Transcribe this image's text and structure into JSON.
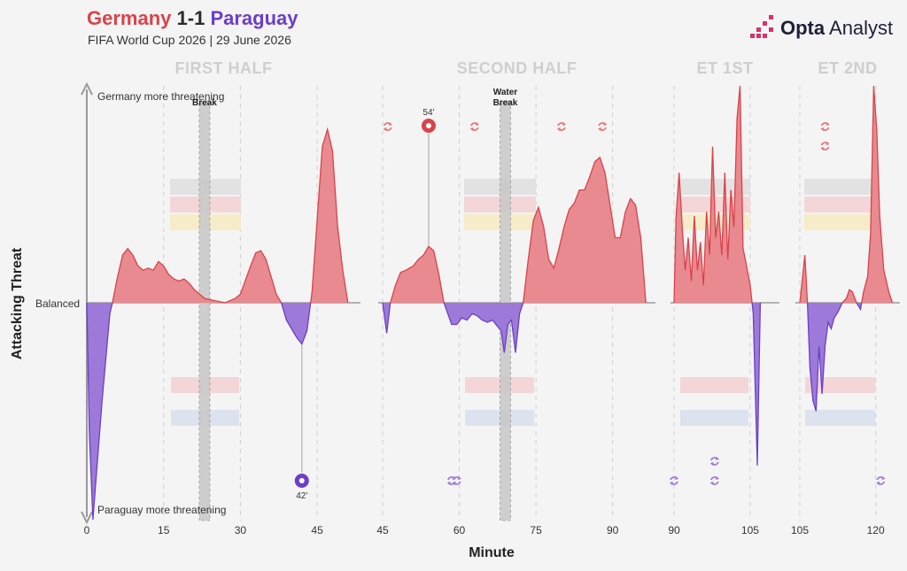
{
  "header": {
    "team_home": "Germany",
    "score": "1-1",
    "team_away": "Paraguay",
    "subtitle": "FIFA World Cup 2026 | 29 June 2026"
  },
  "brand": {
    "name_bold": "Opta",
    "name_rest": " Analyst"
  },
  "colors": {
    "home": "#d9434b",
    "home_fill": "#e88a8f",
    "away": "#6b3fc8",
    "away_fill": "#9d7ad9",
    "grid": "#cfcfcf",
    "break_band": "#c8c8c8"
  },
  "chart_data": {
    "type": "area",
    "title": "Germany 1-1 Paraguay",
    "xlabel": "Minute",
    "ylabel": "Attacking Threat",
    "y_annotations": {
      "top": "Germany more threatening",
      "middle": "Balanced",
      "bottom": "Paraguay more threatening"
    },
    "ylim": [
      -1,
      1
    ],
    "x_ticks": [
      {
        "label": "0",
        "minute": 0
      },
      {
        "label": "15",
        "minute": 15
      },
      {
        "label": "30",
        "minute": 30
      },
      {
        "label": "45",
        "minute": 45
      },
      {
        "label": "45",
        "minute": 45,
        "period": "second"
      },
      {
        "label": "60",
        "minute": 60
      },
      {
        "label": "75",
        "minute": 75
      },
      {
        "label": "90",
        "minute": 90
      },
      {
        "label": "90",
        "minute": 90,
        "period": "et1"
      },
      {
        "label": "105",
        "minute": 105
      },
      {
        "label": "105",
        "minute": 105,
        "period": "et2"
      },
      {
        "label": "120",
        "minute": 120
      }
    ],
    "periods": [
      {
        "name": "FIRST HALF",
        "start": 0,
        "end": 52,
        "points": [
          [
            0,
            0
          ],
          [
            0.5,
            -0.6
          ],
          [
            1.2,
            -1.0
          ],
          [
            2,
            -0.75
          ],
          [
            3,
            -0.45
          ],
          [
            4.5,
            -0.05
          ],
          [
            5,
            0
          ],
          [
            6,
            0.12
          ],
          [
            7,
            0.22
          ],
          [
            8,
            0.25
          ],
          [
            9,
            0.22
          ],
          [
            10,
            0.17
          ],
          [
            11,
            0.15
          ],
          [
            12,
            0.16
          ],
          [
            13,
            0.15
          ],
          [
            14,
            0.19
          ],
          [
            15,
            0.17
          ],
          [
            16,
            0.13
          ],
          [
            17,
            0.11
          ],
          [
            18,
            0.1
          ],
          [
            19,
            0.11
          ],
          [
            20,
            0.09
          ],
          [
            21,
            0.06
          ],
          [
            23,
            0.02
          ],
          [
            25,
            0.01
          ],
          [
            27,
            0.0
          ],
          [
            29,
            0.02
          ],
          [
            30,
            0.04
          ],
          [
            32,
            0.17
          ],
          [
            33,
            0.23
          ],
          [
            34,
            0.24
          ],
          [
            35,
            0.2
          ],
          [
            36,
            0.12
          ],
          [
            37,
            0.04
          ],
          [
            38,
            0.0
          ],
          [
            39,
            -0.08
          ],
          [
            41,
            -0.16
          ],
          [
            42,
            -0.19
          ],
          [
            43,
            -0.13
          ],
          [
            44,
            0.05
          ],
          [
            46,
            0.72
          ],
          [
            47,
            0.8
          ],
          [
            48,
            0.7
          ],
          [
            49,
            0.35
          ],
          [
            50,
            0.15
          ],
          [
            51,
            0
          ]
        ]
      },
      {
        "name": "SECOND HALF",
        "start": 45,
        "end": 97,
        "points": [
          [
            45,
            0
          ],
          [
            45.8,
            -0.14
          ],
          [
            46.5,
            0
          ],
          [
            47.5,
            0.08
          ],
          [
            48.5,
            0.14
          ],
          [
            49.5,
            0.15
          ],
          [
            51,
            0.17
          ],
          [
            52,
            0.2
          ],
          [
            53,
            0.22
          ],
          [
            54,
            0.26
          ],
          [
            55,
            0.24
          ],
          [
            56,
            0.13
          ],
          [
            57,
            0.0
          ],
          [
            58.5,
            -0.1
          ],
          [
            59.5,
            -0.1
          ],
          [
            60.5,
            -0.07
          ],
          [
            61.5,
            -0.08
          ],
          [
            62.5,
            -0.05
          ],
          [
            63.5,
            -0.06
          ],
          [
            64.5,
            -0.08
          ],
          [
            65.5,
            -0.09
          ],
          [
            66.5,
            -0.08
          ],
          [
            67.5,
            -0.11
          ],
          [
            68.2,
            -0.13
          ],
          [
            68.8,
            -0.23
          ],
          [
            69.5,
            -0.1
          ],
          [
            70.2,
            -0.08
          ],
          [
            71,
            -0.23
          ],
          [
            71.8,
            -0.05
          ],
          [
            72.5,
            0
          ],
          [
            73.5,
            0.2
          ],
          [
            74.5,
            0.38
          ],
          [
            75.5,
            0.44
          ],
          [
            76.5,
            0.35
          ],
          [
            77.5,
            0.2
          ],
          [
            78.5,
            0.16
          ],
          [
            79.5,
            0.25
          ],
          [
            80.5,
            0.35
          ],
          [
            81.5,
            0.43
          ],
          [
            82.5,
            0.46
          ],
          [
            83.5,
            0.52
          ],
          [
            84.5,
            0.52
          ],
          [
            85.5,
            0.58
          ],
          [
            86.5,
            0.65
          ],
          [
            87.5,
            0.67
          ],
          [
            88.5,
            0.6
          ],
          [
            89.5,
            0.45
          ],
          [
            90.5,
            0.3
          ],
          [
            91.5,
            0.3
          ],
          [
            92.5,
            0.42
          ],
          [
            93.5,
            0.48
          ],
          [
            94.5,
            0.45
          ],
          [
            95.5,
            0.3
          ],
          [
            96.5,
            0.0
          ]
        ]
      },
      {
        "name": "ET 1ST",
        "start": 90,
        "end": 111,
        "points": [
          [
            90,
            0
          ],
          [
            90.4,
            0.4
          ],
          [
            91,
            0.6
          ],
          [
            91.6,
            0.35
          ],
          [
            92.2,
            0.15
          ],
          [
            92.8,
            0.3
          ],
          [
            93.4,
            0.1
          ],
          [
            94,
            0.4
          ],
          [
            94.6,
            0.15
          ],
          [
            95.2,
            0.28
          ],
          [
            95.8,
            0.08
          ],
          [
            96.4,
            0.42
          ],
          [
            97,
            0.22
          ],
          [
            97.6,
            0.72
          ],
          [
            98.2,
            0.3
          ],
          [
            98.8,
            0.42
          ],
          [
            99.4,
            0.22
          ],
          [
            100,
            0.6
          ],
          [
            100.6,
            0.2
          ],
          [
            101.2,
            0.52
          ],
          [
            101.8,
            0.35
          ],
          [
            102.4,
            0.85
          ],
          [
            103,
            1.0
          ],
          [
            103.6,
            0.25
          ],
          [
            104.2,
            0.18
          ],
          [
            105,
            0.08
          ],
          [
            105.6,
            -0.05
          ],
          [
            106.4,
            -0.75
          ],
          [
            107,
            0
          ]
        ]
      },
      {
        "name": "ET 2ND",
        "start": 105,
        "end": 127,
        "points": [
          [
            105,
            0
          ],
          [
            106,
            0.22
          ],
          [
            106.5,
            0
          ],
          [
            107,
            -0.3
          ],
          [
            107.6,
            -0.45
          ],
          [
            108.2,
            -0.5
          ],
          [
            108.8,
            -0.2
          ],
          [
            109.4,
            -0.42
          ],
          [
            110,
            -0.2
          ],
          [
            110.6,
            -0.09
          ],
          [
            111.2,
            -0.12
          ],
          [
            111.8,
            -0.07
          ],
          [
            112.6,
            -0.04
          ],
          [
            113.4,
            0.0
          ],
          [
            114.2,
            0.02
          ],
          [
            114.8,
            0.06
          ],
          [
            115.4,
            0.05
          ],
          [
            116.2,
            0.0
          ],
          [
            117,
            -0.03
          ],
          [
            117.6,
            0.05
          ],
          [
            118.4,
            0.12
          ],
          [
            119,
            0.32
          ],
          [
            119.6,
            1.0
          ],
          [
            120.2,
            0.8
          ],
          [
            120.8,
            0.4
          ],
          [
            121.6,
            0.15
          ],
          [
            122.6,
            0.05
          ],
          [
            123.3,
            0
          ]
        ]
      }
    ],
    "drinks_breaks": [
      {
        "period": "FIRST HALF",
        "minute": 23,
        "label": "Break"
      },
      {
        "period": "SECOND HALF",
        "minute": 69,
        "label": "Water Break"
      }
    ],
    "goals": [
      {
        "team": "Germany",
        "minute": 54,
        "label": "54'"
      },
      {
        "team": "Paraguay",
        "minute": 42,
        "label": "42'"
      }
    ],
    "substitutions": {
      "Germany": [
        {
          "minute": 46
        },
        {
          "minute": 63
        },
        {
          "minute": 80
        },
        {
          "minute": 88
        },
        {
          "minute": 110
        },
        {
          "minute": 110
        }
      ],
      "Paraguay": [
        {
          "minute": 58.5
        },
        {
          "minute": 59.5
        },
        {
          "minute": 90
        },
        {
          "minute": 98
        },
        {
          "minute": 98
        },
        {
          "minute": 121
        }
      ]
    }
  }
}
